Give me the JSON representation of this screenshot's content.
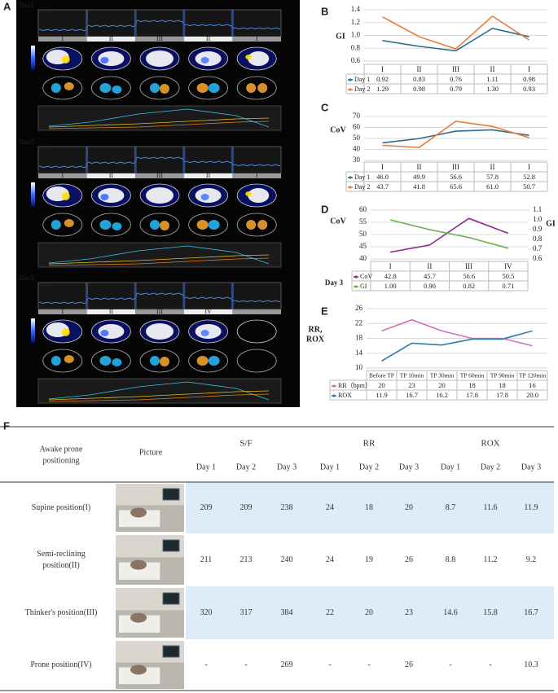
{
  "panel_labels": [
    "A",
    "B",
    "C",
    "D",
    "E",
    "F"
  ],
  "panel_a": {
    "trace_label": "Global",
    "days": [
      {
        "label": "Day1",
        "segments": [
          "I",
          "II",
          "III",
          "II",
          "I"
        ]
      },
      {
        "label": "Day2",
        "segments": [
          "I",
          "II",
          "III",
          "II",
          "I"
        ]
      },
      {
        "label": "Day3",
        "segments": [
          "I",
          "II",
          "III",
          "IV"
        ]
      }
    ]
  },
  "chart_data": [
    {
      "type": "line",
      "ylabel": "GI",
      "categories": [
        "I",
        "II",
        "III",
        "II",
        "I"
      ],
      "series": [
        {
          "name": "Day 1",
          "color": "#2f6d8e",
          "values": [
            0.92,
            0.83,
            0.76,
            1.11,
            0.98
          ]
        },
        {
          "name": "Day 2",
          "color": "#e67e3a",
          "values": [
            1.29,
            0.98,
            0.79,
            1.3,
            0.93
          ],
          "value_labels": [
            "1.29",
            "0.98",
            "0.79",
            "1.30",
            "0.93"
          ]
        }
      ],
      "ylim": [
        0.6,
        1.4
      ],
      "yticks": [
        0.6,
        0.8,
        {
          "value": 1,
          "label": "1.0"
        },
        1.2,
        1.4
      ],
      "grid": true
    },
    {
      "type": "line",
      "ylabel": "CoV",
      "categories": [
        "I",
        "II",
        "III",
        "II",
        "I"
      ],
      "series": [
        {
          "name": "Day 1",
          "color": "#2f6d8e",
          "values": [
            46,
            49.9,
            56.6,
            57.8,
            52.8
          ],
          "value_labels": [
            "46.0",
            "49.9",
            "56.6",
            "57.8",
            "52.8"
          ]
        },
        {
          "name": "Day 2",
          "color": "#e67e3a",
          "values": [
            43.7,
            41.8,
            65.6,
            61,
            50.7
          ],
          "value_labels": [
            "43.7",
            "41.8",
            "65.6",
            "61.0",
            "50.7"
          ]
        }
      ],
      "ylim": [
        30,
        70
      ],
      "yticks": [
        30,
        40,
        50,
        60,
        70
      ],
      "grid": true
    },
    {
      "type": "line",
      "ylabel": "CoV",
      "y2label": "GI",
      "table_label": "Day 3",
      "categories": [
        "I",
        "II",
        "III",
        "IV"
      ],
      "series": [
        {
          "name": "CoV",
          "color": "#8e2c8e",
          "values": [
            42.8,
            45.7,
            56.6,
            50.5
          ]
        },
        {
          "name": "GI",
          "color": "#6ab04c",
          "axis": "y2",
          "values": [
            1,
            0.9,
            0.82,
            0.71
          ],
          "value_labels": [
            "1.00",
            "0.90",
            "0.82",
            "0.71"
          ]
        }
      ],
      "ylim": [
        40,
        60
      ],
      "yticks": [
        40,
        45,
        50,
        55,
        60
      ],
      "y2lim": [
        0.6,
        1.1
      ],
      "y2ticks": [
        0.6,
        0.7,
        0.8,
        0.9,
        {
          "value": 1,
          "label": "1.0"
        },
        1.1
      ],
      "grid": true
    },
    {
      "type": "line",
      "ylabel": [
        "RR,",
        "ROX"
      ],
      "categories": [
        "Before TP",
        "TP 10min",
        "TP 30min",
        "TP 60min",
        "TP 90min",
        "TP 120min"
      ],
      "series": [
        {
          "name": "RR（bpm）",
          "color": "#d36fb8",
          "values": [
            20,
            23,
            20,
            18,
            18,
            16
          ]
        },
        {
          "name": "ROX",
          "color": "#2e7bab",
          "values": [
            11.9,
            16.7,
            16.2,
            17.8,
            17.8,
            20
          ],
          "value_labels": [
            "11.9",
            "16.7",
            "16.2",
            "17.8",
            "17.8",
            "20.0"
          ]
        }
      ],
      "ylim": [
        10,
        26
      ],
      "yticks": [
        10,
        14,
        18,
        22,
        26
      ],
      "grid": true
    }
  ],
  "table": {
    "header": {
      "first": [
        "Awake prone",
        "positioning"
      ],
      "picture": "Picture",
      "groups": [
        "S/F",
        "RR",
        "ROX"
      ],
      "days": [
        "Day 1",
        "Day 2",
        "Day 3"
      ]
    },
    "rows": [
      {
        "label": [
          "Supine position(I)"
        ],
        "cells": [
          "209",
          "209",
          "238",
          "24",
          "18",
          "20",
          "8.7",
          "11.6",
          "11.9"
        ]
      },
      {
        "label": [
          "Semi-reclining",
          "position(II)"
        ],
        "cells": [
          "211",
          "213",
          "240",
          "24",
          "19",
          "26",
          "8.8",
          "11.2",
          "9.2"
        ]
      },
      {
        "label": [
          "Thinker's position(III)"
        ],
        "cells": [
          "320",
          "317",
          "384",
          "22",
          "20",
          "23",
          "14.6",
          "15.8",
          "16.7"
        ]
      },
      {
        "label": [
          "Prone position(IV)"
        ],
        "cells": [
          "-",
          "-",
          "269",
          "-",
          "-",
          "26",
          "-",
          "-",
          "10.3"
        ]
      }
    ]
  }
}
